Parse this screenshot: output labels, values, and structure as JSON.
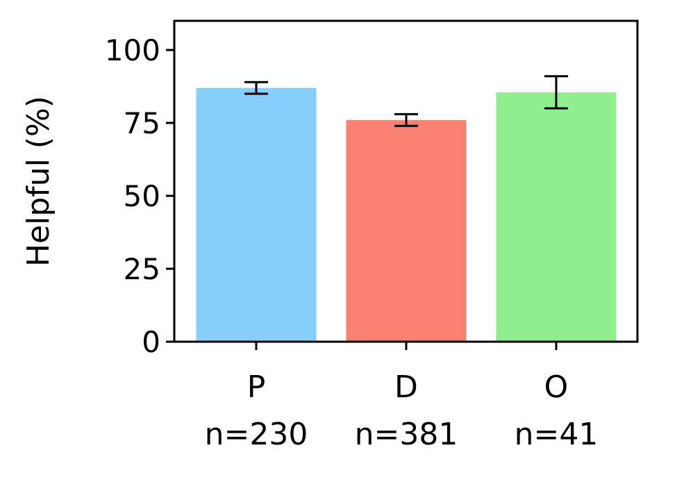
{
  "chart_data": {
    "type": "bar",
    "title": "",
    "xlabel": "",
    "ylabel": "Helpful (%)",
    "ylim": [
      0,
      110
    ],
    "yticks": [
      0,
      25,
      50,
      75,
      100
    ],
    "grid": false,
    "categories": [
      "P",
      "D",
      "O"
    ],
    "sample_labels": [
      "n=230",
      "n=381",
      "n=41"
    ],
    "values": [
      87,
      76,
      85.5
    ],
    "error_low": [
      85,
      74,
      80
    ],
    "error_high": [
      89,
      78,
      91
    ],
    "colors": [
      "#87CEFA",
      "#FA8072",
      "#90EE90"
    ]
  }
}
